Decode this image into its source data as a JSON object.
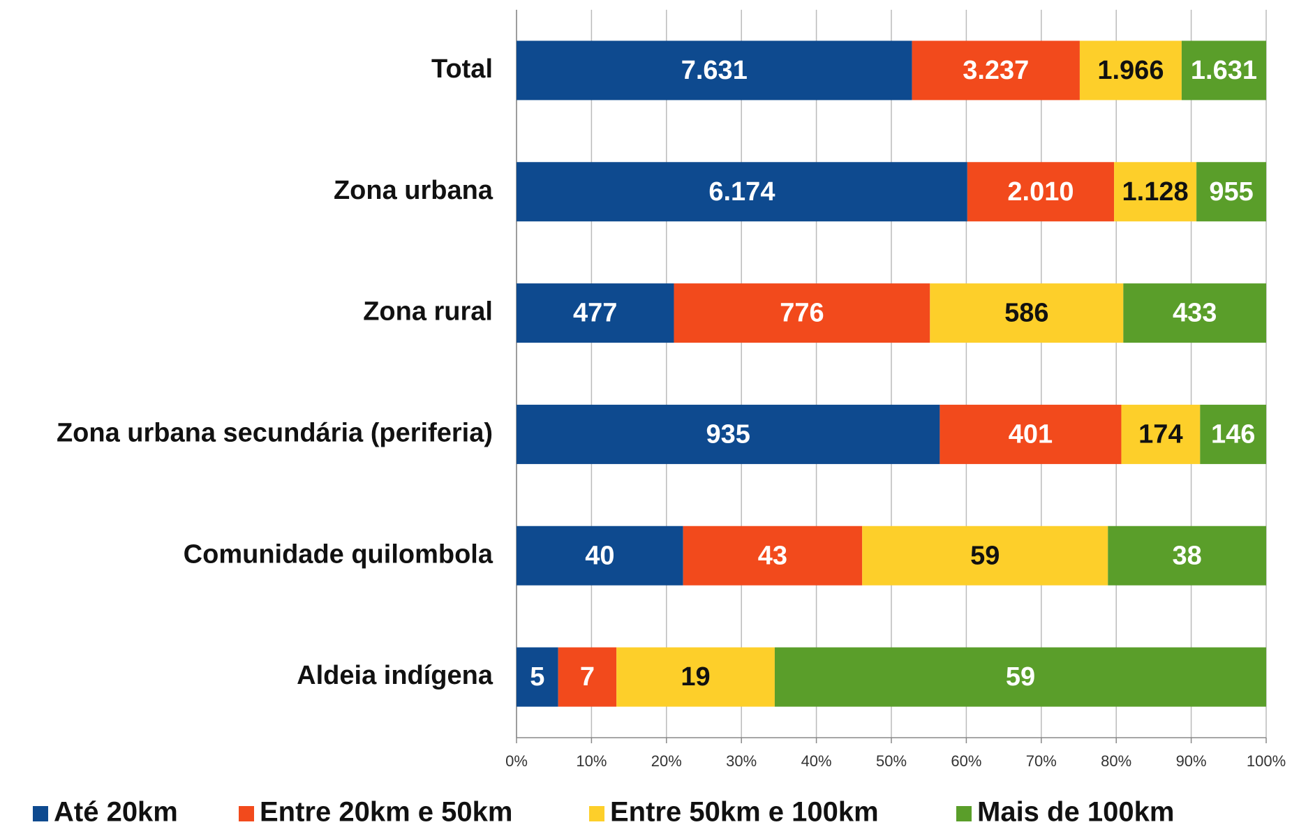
{
  "chart_data": {
    "type": "stacked-bar-100",
    "categories": [
      "Total",
      "Zona urbana",
      "Zona rural",
      "Zona urbana secundária (periferia)",
      "Comunidade  quilombola",
      "Aldeia indígena"
    ],
    "series": [
      {
        "name": "Até 20km",
        "color": "#0e4a8f",
        "label_color": "#ffffff",
        "values": [
          7631,
          6174,
          477,
          935,
          40,
          5
        ],
        "value_labels": [
          "7.631",
          "6.174",
          "477",
          "935",
          "40",
          "5"
        ]
      },
      {
        "name": "Entre 20km e 50km",
        "color": "#f24a1c",
        "label_color": "#ffffff",
        "values": [
          3237,
          2010,
          776,
          401,
          43,
          7
        ],
        "value_labels": [
          "3.237",
          "2.010",
          "776",
          "401",
          "43",
          "7"
        ]
      },
      {
        "name": "Entre 50km e 100km",
        "color": "#fdcf2a",
        "label_color": "#111111",
        "values": [
          1966,
          1128,
          586,
          174,
          59,
          19
        ],
        "value_labels": [
          "1.966",
          "1.128",
          "586",
          "174",
          "59",
          "19"
        ]
      },
      {
        "name": "Mais de 100km",
        "color": "#5a9e2a",
        "label_color": "#ffffff",
        "values": [
          1631,
          955,
          433,
          146,
          38,
          59
        ],
        "value_labels": [
          "1.631",
          "955",
          "433",
          "146",
          "38",
          "59"
        ]
      }
    ],
    "xlim": [
      0,
      100
    ],
    "xticks": [
      {
        "value": 0,
        "label": "0%"
      },
      {
        "value": 10,
        "label": "10%"
      },
      {
        "value": 20,
        "label": "20%"
      },
      {
        "value": 30,
        "label": "30%"
      },
      {
        "value": 40,
        "label": "40%"
      },
      {
        "value": 50,
        "label": "50%"
      },
      {
        "value": 60,
        "label": "60%"
      },
      {
        "value": 70,
        "label": "70%"
      },
      {
        "value": 80,
        "label": "80%"
      },
      {
        "value": 90,
        "label": "90%"
      },
      {
        "value": 100,
        "label": "100%"
      }
    ],
    "grid": true,
    "legend": "bottom"
  }
}
